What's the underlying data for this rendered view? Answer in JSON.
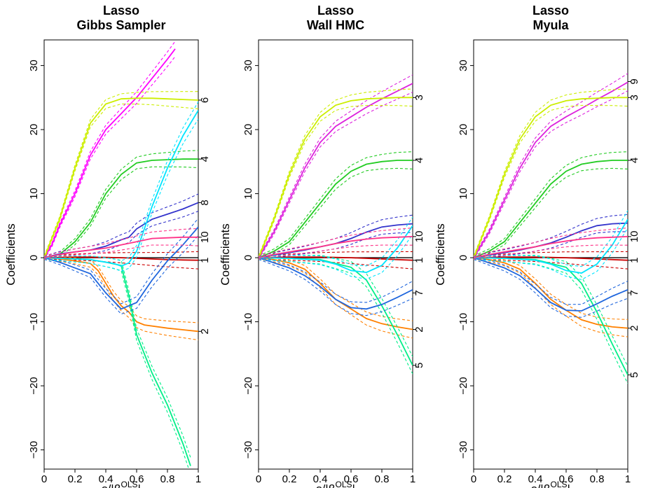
{
  "chart_data": [
    {
      "type": "line",
      "title": [
        "Lasso",
        "Gibbs Sampler"
      ],
      "xlabel": "s/|βOLS|",
      "ylabel": "Coefficients",
      "xlim": [
        0,
        1
      ],
      "ylim": [
        -33,
        34
      ],
      "xticks": [
        "0",
        "0.2",
        "0.4",
        "0.6",
        "0.8",
        "1"
      ],
      "yticks": [
        "−30",
        "−20",
        "−10",
        "0",
        "10",
        "20",
        "30"
      ],
      "credible_bands": true,
      "right_labels": [
        {
          "text": "6",
          "y": 24.6
        },
        {
          "text": "4",
          "y": 15.4
        },
        {
          "text": "8",
          "y": 8.6
        },
        {
          "text": "10",
          "y": 3.2
        },
        {
          "text": "1",
          "y": -0.4
        },
        {
          "text": "2",
          "y": -11.5
        }
      ],
      "series": [
        {
          "id": "v1",
          "color": "#cc0000",
          "x": [
            0,
            0.1,
            0.2,
            0.3,
            0.4,
            0.5,
            0.6,
            0.7,
            0.8,
            0.9,
            1
          ],
          "y": [
            0,
            0.05,
            0.1,
            0.1,
            0.05,
            0,
            -0.1,
            -0.2,
            -0.3,
            -0.35,
            -0.4
          ]
        },
        {
          "id": "v2",
          "color": "#ff8000",
          "x": [
            0,
            0.1,
            0.2,
            0.3,
            0.35,
            0.4,
            0.45,
            0.5,
            0.55,
            0.6,
            0.65,
            0.8,
            1
          ],
          "y": [
            0,
            -0.2,
            -0.5,
            -0.9,
            -2,
            -4,
            -6,
            -7.5,
            -8.5,
            -10,
            -10.5,
            -11,
            -11.5
          ]
        },
        {
          "id": "v3",
          "color": "#ff00ff",
          "x": [
            0,
            0.05,
            0.1,
            0.2,
            0.3,
            0.4,
            0.5,
            0.6,
            0.7,
            0.8,
            0.85
          ],
          "y": [
            0,
            2,
            5,
            10,
            16,
            20,
            22.5,
            25,
            28,
            31,
            32.6
          ]
        },
        {
          "id": "v4",
          "color": "#22cc22",
          "x": [
            0,
            0.1,
            0.2,
            0.3,
            0.4,
            0.5,
            0.6,
            0.7,
            0.8,
            0.9,
            1
          ],
          "y": [
            0,
            0.5,
            2.5,
            5.5,
            10,
            13,
            14.8,
            15.2,
            15.3,
            15.4,
            15.4
          ]
        },
        {
          "id": "v5",
          "color": "#00ee88",
          "x": [
            0,
            0.1,
            0.2,
            0.3,
            0.4,
            0.5,
            0.55,
            0.6,
            0.7,
            0.8,
            0.9,
            0.95
          ],
          "y": [
            0,
            -0.1,
            -0.2,
            -0.3,
            -0.7,
            -1.2,
            -6,
            -12,
            -18,
            -23,
            -29,
            -32.5
          ]
        },
        {
          "id": "v6",
          "color": "#ccee00",
          "x": [
            0,
            0.05,
            0.1,
            0.2,
            0.3,
            0.4,
            0.5,
            0.6,
            0.7,
            0.8,
            0.9,
            1
          ],
          "y": [
            0,
            3,
            6,
            14,
            21,
            24,
            24.8,
            24.9,
            24.9,
            24.8,
            24.7,
            24.6
          ]
        },
        {
          "id": "v7",
          "color": "#1f66dd",
          "x": [
            0,
            0.1,
            0.2,
            0.3,
            0.4,
            0.5,
            0.6,
            0.7,
            0.8,
            0.9,
            1
          ],
          "y": [
            0,
            -0.7,
            -1.6,
            -2.5,
            -5.5,
            -8,
            -7,
            -3.5,
            -0.5,
            2,
            4.8
          ]
        },
        {
          "id": "v8",
          "color": "#3333cc",
          "x": [
            0,
            0.1,
            0.2,
            0.3,
            0.4,
            0.5,
            0.55,
            0.6,
            0.7,
            0.8,
            0.9,
            1
          ],
          "y": [
            0,
            0.6,
            0.9,
            1.2,
            1.8,
            2.8,
            3.2,
            4.5,
            6,
            6.8,
            7.6,
            8.6
          ]
        },
        {
          "id": "v9",
          "color": "#00e5ff",
          "x": [
            0,
            0.1,
            0.2,
            0.3,
            0.4,
            0.45,
            0.5,
            0.55,
            0.6,
            0.7,
            0.8,
            0.9,
            1
          ],
          "y": [
            0,
            -0.1,
            -0.2,
            -0.3,
            -0.7,
            -0.9,
            -1.3,
            -0.8,
            1,
            8,
            14,
            19,
            23
          ]
        },
        {
          "id": "v10",
          "color": "#ff3388",
          "x": [
            0,
            0.1,
            0.2,
            0.3,
            0.4,
            0.5,
            0.6,
            0.7,
            0.8,
            0.9,
            1
          ],
          "y": [
            0,
            0.5,
            0.9,
            1.2,
            1.5,
            2,
            2.5,
            3,
            3.1,
            3.2,
            3.2
          ]
        }
      ]
    },
    {
      "type": "line",
      "title": [
        "Lasso",
        "Wall HMC"
      ],
      "xlabel": "s/|βOLS|",
      "ylabel": "Coefficients",
      "xlim": [
        0,
        1
      ],
      "ylim": [
        -33,
        34
      ],
      "xticks": [
        "0",
        "0.2",
        "0.4",
        "0.6",
        "0.8",
        "1"
      ],
      "yticks": [
        "−30",
        "−20",
        "−10",
        "0",
        "10",
        "20",
        "30"
      ],
      "credible_bands": true,
      "right_labels": [
        {
          "text": "3",
          "y": 25
        },
        {
          "text": "4",
          "y": 15.2
        },
        {
          "text": "10",
          "y": 3.3
        },
        {
          "text": "1",
          "y": -0.4
        },
        {
          "text": "7",
          "y": -5.5
        },
        {
          "text": "2",
          "y": -11.2
        },
        {
          "text": "5",
          "y": -16.8
        }
      ],
      "series": [
        {
          "id": "v1",
          "color": "#cc0000",
          "x": [
            0,
            0.2,
            0.4,
            0.6,
            0.8,
            1
          ],
          "y": [
            0,
            0.1,
            0.1,
            0,
            -0.2,
            -0.4
          ]
        },
        {
          "id": "v2",
          "color": "#ff8000",
          "x": [
            0,
            0.1,
            0.2,
            0.3,
            0.4,
            0.5,
            0.6,
            0.7,
            0.8,
            0.9,
            1
          ],
          "y": [
            0,
            -0.3,
            -0.8,
            -1.8,
            -4,
            -6.5,
            -8,
            -9.5,
            -10.3,
            -10.8,
            -11.2
          ]
        },
        {
          "id": "v3",
          "color": "#dd22dd",
          "x": [
            0,
            0.1,
            0.2,
            0.3,
            0.4,
            0.5,
            0.6,
            0.7,
            0.8,
            0.9,
            1
          ],
          "y": [
            0,
            4,
            9,
            14,
            18,
            20.5,
            22,
            23.5,
            24.8,
            26,
            27.2
          ]
        },
        {
          "id": "v4",
          "color": "#22cc22",
          "x": [
            0,
            0.1,
            0.2,
            0.3,
            0.4,
            0.5,
            0.6,
            0.7,
            0.8,
            0.9,
            1
          ],
          "y": [
            0,
            1,
            2.5,
            5.5,
            8.5,
            11.5,
            13.5,
            14.6,
            15,
            15.2,
            15.2
          ]
        },
        {
          "id": "v5",
          "color": "#00ee88",
          "x": [
            0,
            0.2,
            0.4,
            0.6,
            0.7,
            0.8,
            0.9,
            1
          ],
          "y": [
            0,
            -0.1,
            -0.3,
            -1.5,
            -3.5,
            -7.5,
            -12,
            -16.8
          ]
        },
        {
          "id": "v6",
          "color": "#ccee00",
          "x": [
            0,
            0.1,
            0.2,
            0.3,
            0.4,
            0.5,
            0.6,
            0.7,
            0.8,
            0.9,
            1
          ],
          "y": [
            0,
            6,
            13,
            18.5,
            22,
            23.8,
            24.5,
            24.8,
            24.9,
            25,
            25
          ]
        },
        {
          "id": "v7",
          "color": "#1f66dd",
          "x": [
            0,
            0.1,
            0.2,
            0.3,
            0.4,
            0.5,
            0.6,
            0.7,
            0.8,
            0.9,
            1
          ],
          "y": [
            0,
            -0.8,
            -1.6,
            -2.8,
            -4.5,
            -6.5,
            -7.8,
            -8,
            -7.3,
            -6.2,
            -5
          ]
        },
        {
          "id": "v8",
          "color": "#3333cc",
          "x": [
            0,
            0.1,
            0.2,
            0.3,
            0.4,
            0.5,
            0.6,
            0.7,
            0.8,
            0.9,
            1
          ],
          "y": [
            0,
            0.4,
            0.8,
            1.2,
            1.7,
            2.2,
            3,
            4,
            4.8,
            5.1,
            5.3
          ]
        },
        {
          "id": "v9",
          "color": "#00e5ff",
          "x": [
            0,
            0.2,
            0.4,
            0.5,
            0.6,
            0.7,
            0.8,
            0.9,
            1
          ],
          "y": [
            0,
            -0.1,
            -0.4,
            -1,
            -2,
            -2.3,
            -1.2,
            1.5,
            5
          ]
        },
        {
          "id": "v10",
          "color": "#ff3388",
          "x": [
            0,
            0.1,
            0.2,
            0.3,
            0.4,
            0.5,
            0.6,
            0.7,
            0.8,
            0.9,
            1
          ],
          "y": [
            0,
            0.5,
            0.9,
            1.3,
            1.7,
            2.2,
            2.6,
            2.9,
            3.1,
            3.2,
            3.3
          ]
        }
      ]
    },
    {
      "type": "line",
      "title": [
        "Lasso",
        "Myula"
      ],
      "xlabel": "s/|βOLS|",
      "ylabel": "Coefficients",
      "xlim": [
        0,
        1
      ],
      "ylim": [
        -33,
        34
      ],
      "xticks": [
        "0",
        "0.2",
        "0.4",
        "0.6",
        "0.8",
        "1"
      ],
      "yticks": [
        "−30",
        "−20",
        "−10",
        "0",
        "10",
        "20",
        "30"
      ],
      "credible_bands": true,
      "right_labels": [
        {
          "text": "9",
          "y": 27.5
        },
        {
          "text": "3",
          "y": 25
        },
        {
          "text": "4",
          "y": 15.2
        },
        {
          "text": "10",
          "y": 3.3
        },
        {
          "text": "1",
          "y": -0.4
        },
        {
          "text": "7",
          "y": -5.5
        },
        {
          "text": "2",
          "y": -11
        },
        {
          "text": "5",
          "y": -18.3
        }
      ],
      "series": [
        {
          "id": "v1",
          "color": "#cc0000",
          "x": [
            0,
            0.2,
            0.4,
            0.6,
            0.8,
            1
          ],
          "y": [
            0,
            0.1,
            0.1,
            0,
            -0.2,
            -0.4
          ]
        },
        {
          "id": "v2",
          "color": "#ff8000",
          "x": [
            0,
            0.1,
            0.2,
            0.3,
            0.4,
            0.5,
            0.6,
            0.7,
            0.8,
            0.9,
            1
          ],
          "y": [
            0,
            -0.3,
            -0.8,
            -1.8,
            -4,
            -6.5,
            -8.2,
            -9.7,
            -10.4,
            -10.8,
            -11
          ]
        },
        {
          "id": "v3",
          "color": "#dd22dd",
          "x": [
            0,
            0.1,
            0.2,
            0.3,
            0.4,
            0.5,
            0.6,
            0.7,
            0.8,
            0.9,
            1
          ],
          "y": [
            0,
            4,
            9,
            14,
            18,
            20.5,
            22,
            23.3,
            24.7,
            26,
            27.4
          ]
        },
        {
          "id": "v4",
          "color": "#22cc22",
          "x": [
            0,
            0.1,
            0.2,
            0.3,
            0.4,
            0.5,
            0.6,
            0.7,
            0.8,
            0.9,
            1
          ],
          "y": [
            0,
            1,
            2.5,
            5.5,
            8.5,
            11.5,
            13.5,
            14.6,
            15,
            15.2,
            15.2
          ]
        },
        {
          "id": "v5",
          "color": "#00ee88",
          "x": [
            0,
            0.2,
            0.4,
            0.6,
            0.7,
            0.8,
            0.9,
            1
          ],
          "y": [
            0,
            -0.1,
            -0.3,
            -1.5,
            -4,
            -8.5,
            -13.5,
            -18.3
          ]
        },
        {
          "id": "v6",
          "color": "#ccee00",
          "x": [
            0,
            0.1,
            0.2,
            0.3,
            0.4,
            0.5,
            0.6,
            0.7,
            0.8,
            0.9,
            1
          ],
          "y": [
            0,
            6,
            13,
            18.5,
            22,
            23.8,
            24.5,
            24.8,
            24.9,
            25,
            25
          ]
        },
        {
          "id": "v7",
          "color": "#1f66dd",
          "x": [
            0,
            0.1,
            0.2,
            0.3,
            0.4,
            0.5,
            0.6,
            0.7,
            0.8,
            0.9,
            1
          ],
          "y": [
            0,
            -0.8,
            -1.6,
            -2.8,
            -4.8,
            -7,
            -8.2,
            -8.3,
            -7.2,
            -6,
            -5
          ]
        },
        {
          "id": "v8",
          "color": "#3333cc",
          "x": [
            0,
            0.1,
            0.2,
            0.3,
            0.4,
            0.5,
            0.6,
            0.7,
            0.8,
            0.9,
            1
          ],
          "y": [
            0,
            0.4,
            0.8,
            1.2,
            1.7,
            2.3,
            3.2,
            4.2,
            5,
            5.3,
            5.4
          ]
        },
        {
          "id": "v9",
          "color": "#00e5ff",
          "x": [
            0,
            0.2,
            0.4,
            0.5,
            0.6,
            0.7,
            0.8,
            0.9,
            1
          ],
          "y": [
            0,
            -0.1,
            -0.4,
            -1,
            -2,
            -2.4,
            -1,
            2,
            6
          ]
        },
        {
          "id": "v10",
          "color": "#ff3388",
          "x": [
            0,
            0.1,
            0.2,
            0.3,
            0.4,
            0.5,
            0.6,
            0.7,
            0.8,
            0.9,
            1
          ],
          "y": [
            0,
            0.5,
            0.9,
            1.3,
            1.7,
            2.2,
            2.6,
            2.9,
            3.1,
            3.2,
            3.3
          ]
        }
      ]
    }
  ]
}
